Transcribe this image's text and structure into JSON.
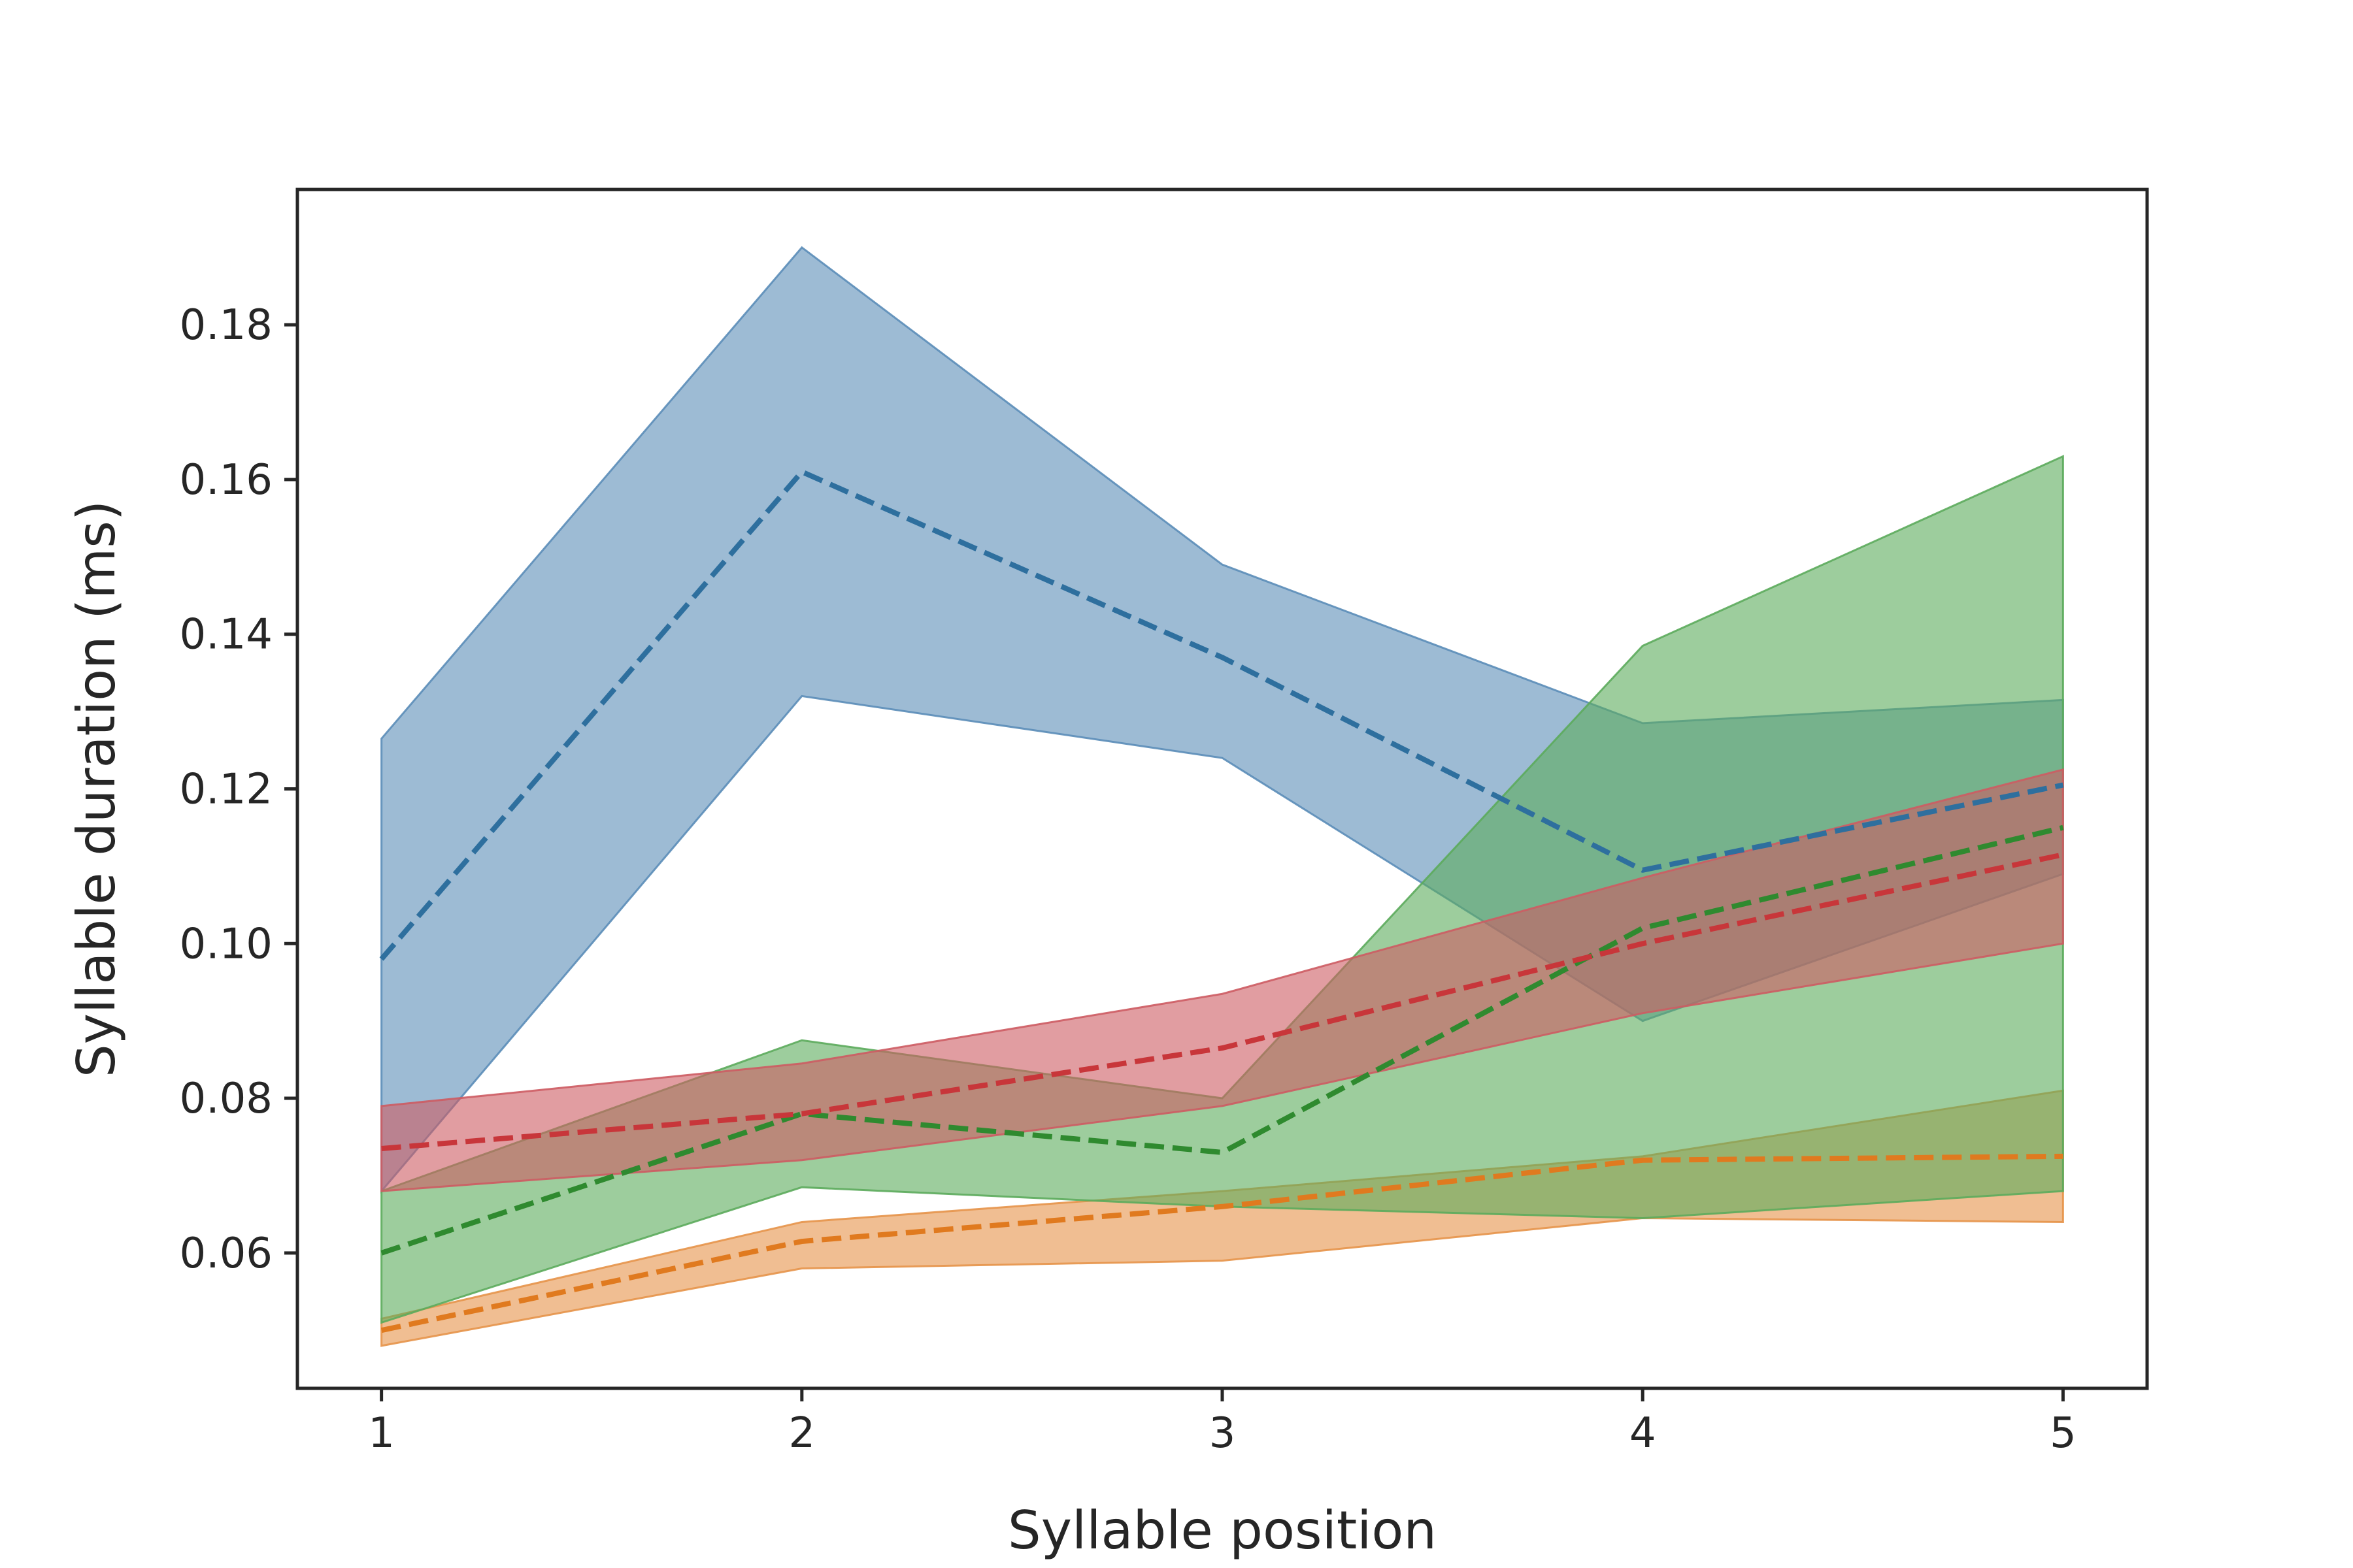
{
  "chart_data": {
    "type": "line",
    "title": "",
    "xlabel": "Syllable position",
    "ylabel": "Syllable duration (ms)",
    "x": [
      1,
      2,
      3,
      4,
      5
    ],
    "xlim": [
      0.8,
      5.2
    ],
    "ylim": [
      0.0425,
      0.1975
    ],
    "xticks": [
      1,
      2,
      3,
      4,
      5
    ],
    "xtick_labels": [
      "1",
      "2",
      "3",
      "4",
      "5"
    ],
    "yticks": [
      0.06,
      0.08,
      0.1,
      0.12,
      0.14,
      0.16,
      0.18
    ],
    "ytick_labels": [
      "0.06",
      "0.08",
      "0.10",
      "0.12",
      "0.14",
      "0.16",
      "0.18"
    ],
    "grid": false,
    "legend": "none",
    "line_style": "dashed",
    "series": [
      {
        "color": "#2e6f9e",
        "fill_color": "#5b8db8",
        "values": [
          0.098,
          0.161,
          0.137,
          0.1095,
          0.1205
        ],
        "lower": [
          0.068,
          0.132,
          0.124,
          0.09,
          0.109
        ],
        "upper": [
          0.1265,
          0.19,
          0.149,
          0.1285,
          0.1315
        ]
      },
      {
        "color": "#e07a1f",
        "fill_color": "#e6934a",
        "values": [
          0.05,
          0.0615,
          0.066,
          0.072,
          0.0725
        ],
        "lower": [
          0.048,
          0.058,
          0.059,
          0.0645,
          0.064
        ],
        "upper": [
          0.0515,
          0.064,
          0.068,
          0.0725,
          0.081
        ]
      },
      {
        "color": "#2f8a2f",
        "fill_color": "#5cab5c",
        "values": [
          0.06,
          0.078,
          0.073,
          0.102,
          0.115
        ],
        "lower": [
          0.051,
          0.0685,
          0.066,
          0.0645,
          0.068
        ],
        "upper": [
          0.068,
          0.0875,
          0.08,
          0.1385,
          0.163
        ]
      },
      {
        "color": "#c8363a",
        "fill_color": "#cd5c63",
        "values": [
          0.0735,
          0.078,
          0.0865,
          0.1,
          0.1115
        ],
        "lower": [
          0.068,
          0.072,
          0.079,
          0.091,
          0.1
        ],
        "upper": [
          0.079,
          0.0845,
          0.0935,
          0.1085,
          0.1225
        ]
      }
    ]
  }
}
